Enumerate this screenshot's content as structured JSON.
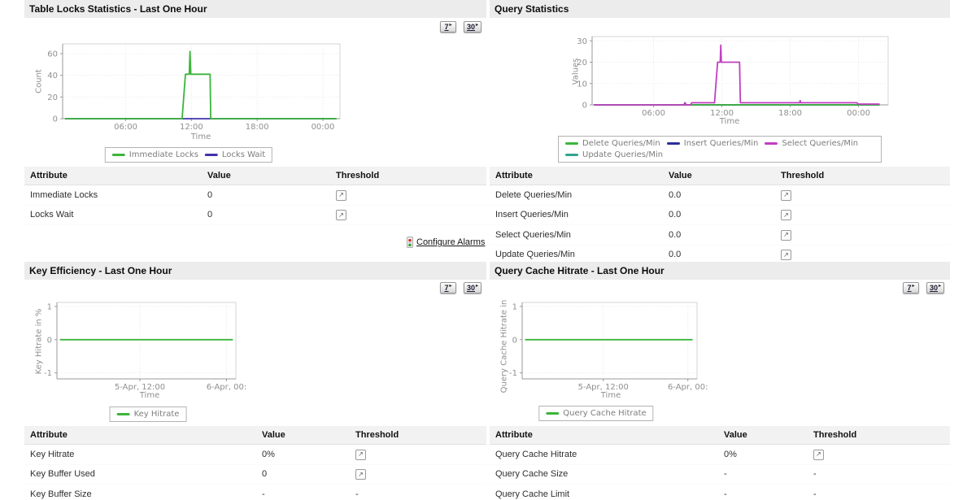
{
  "icons": {
    "threshold_glyph": "↗",
    "period_arrow_glyph": "▸"
  },
  "period_buttons": {
    "seven": "7",
    "thirty": "30"
  },
  "panels": {
    "table_locks": {
      "title": "Table Locks Statistics - Last One Hour",
      "chart_data": {
        "type": "line",
        "xlabel": "Time",
        "ylabel": "Count",
        "xlim": [
          0.24,
          25.56
        ],
        "ylim": [
          0,
          69
        ],
        "xticks": [
          {
            "v": 6,
            "label": "06:00"
          },
          {
            "v": 12,
            "label": "12:00"
          },
          {
            "v": 18,
            "label": "18:00"
          },
          {
            "v": 24,
            "label": "00:00"
          }
        ],
        "yticks": [
          {
            "v": 0,
            "label": "0"
          },
          {
            "v": 20,
            "label": "20"
          },
          {
            "v": 40,
            "label": "40"
          },
          {
            "v": 60,
            "label": "60"
          }
        ],
        "legend": [
          {
            "label": "Immediate Locks",
            "color": "#3cb53c"
          },
          {
            "label": "Locks Wait",
            "color": "#4133ab"
          }
        ],
        "series": [
          {
            "name": "Locks Wait",
            "color": "#4133ab",
            "z": 1,
            "points": [
              [
                0.5,
                0
              ],
              [
                25.2,
                0
              ]
            ]
          },
          {
            "name": "Immediate Locks",
            "color": "#3cb53c",
            "z": 2,
            "points": [
              [
                0.5,
                0
              ],
              [
                11.15,
                0
              ],
              [
                11.45,
                41
              ],
              [
                11.8,
                41
              ],
              [
                11.87,
                62
              ],
              [
                11.94,
                41
              ],
              [
                13.7,
                41
              ],
              [
                13.76,
                0
              ],
              [
                25.2,
                0
              ]
            ]
          }
        ]
      },
      "table": {
        "columns": [
          "Attribute",
          "Value",
          "Threshold"
        ],
        "rows": [
          [
            "Immediate Locks",
            "0",
            "edit-icon"
          ],
          [
            "Locks Wait",
            "0",
            "edit-icon"
          ]
        ]
      },
      "configure_alarms_label": "Configure Alarms"
    },
    "query_statistics": {
      "title": "Query Statistics",
      "chart_data": {
        "type": "line",
        "xlabel": "Time",
        "ylabel": "Values",
        "xlim": [
          0.6,
          26.6
        ],
        "ylim": [
          0,
          32
        ],
        "xticks": [
          {
            "v": 6,
            "label": "06:00"
          },
          {
            "v": 12,
            "label": "12:00"
          },
          {
            "v": 18,
            "label": "18:00"
          },
          {
            "v": 24,
            "label": "00:00"
          }
        ],
        "yticks": [
          {
            "v": 0,
            "label": "0"
          },
          {
            "v": 10,
            "label": "10"
          },
          {
            "v": 20,
            "label": "20"
          },
          {
            "v": 30,
            "label": "30"
          }
        ],
        "legend": [
          {
            "label": "Delete Queries/Min",
            "color": "#3cb53c"
          },
          {
            "label": "Insert Queries/Min",
            "color": "#2d2d9b"
          },
          {
            "label": "Select Queries/Min",
            "color": "#c13fc1"
          },
          {
            "label": "Update Queries/Min",
            "color": "#2fa48c"
          }
        ],
        "series": [
          {
            "name": "Update Queries/Min",
            "color": "#2fa48c",
            "z": 1,
            "points": [
              [
                0.8,
                0
              ],
              [
                25.8,
                0
              ]
            ]
          },
          {
            "name": "Insert Queries/Min",
            "color": "#2d2d9b",
            "z": 2,
            "points": [
              [
                0.8,
                0
              ],
              [
                8.68,
                0
              ],
              [
                8.74,
                0.9
              ],
              [
                8.8,
                0
              ],
              [
                25.8,
                0
              ]
            ]
          },
          {
            "name": "Delete Queries/Min",
            "color": "#3cb53c",
            "z": 3,
            "points": [
              [
                0.8,
                0
              ],
              [
                25.8,
                0
              ]
            ]
          },
          {
            "name": "Select Queries/Min",
            "color": "#c13fc1",
            "z": 4,
            "points": [
              [
                0.8,
                0
              ],
              [
                8.7,
                0
              ],
              [
                8.78,
                1
              ],
              [
                8.86,
                0
              ],
              [
                9.25,
                0
              ],
              [
                9.35,
                1
              ],
              [
                11.35,
                1
              ],
              [
                11.62,
                20
              ],
              [
                11.85,
                20
              ],
              [
                11.9,
                28
              ],
              [
                11.95,
                20
              ],
              [
                13.55,
                20
              ],
              [
                13.62,
                1
              ],
              [
                18.82,
                1
              ],
              [
                18.87,
                2
              ],
              [
                18.92,
                1
              ],
              [
                23.85,
                1
              ],
              [
                23.95,
                0.4
              ],
              [
                25.8,
                0.4
              ]
            ]
          }
        ]
      },
      "table": {
        "columns": [
          "Attribute",
          "Value",
          "Threshold"
        ],
        "rows": [
          [
            "Delete Queries/Min",
            "0.0",
            "edit-icon"
          ],
          [
            "Insert Queries/Min",
            "0.0",
            "edit-icon"
          ],
          [
            "Select Queries/Min",
            "0.0",
            "edit-icon"
          ],
          [
            "Update Queries/Min",
            "0.0",
            "edit-icon"
          ]
        ]
      }
    },
    "key_efficiency": {
      "title": "Key Efficiency - Last One Hour",
      "chart_data": {
        "type": "line",
        "xlabel": "Time",
        "ylabel": "Key Hitrate in %",
        "xlim": [
          0.5,
          25.3
        ],
        "ylim": [
          -1.18,
          1.12
        ],
        "xticks": [
          {
            "v": 12,
            "label": "5-Apr, 12:00"
          },
          {
            "v": 24,
            "label": "6-Apr, 00:"
          }
        ],
        "yticks": [
          {
            "v": -1,
            "label": "-1"
          },
          {
            "v": 0,
            "label": "0"
          },
          {
            "v": 1,
            "label": "1"
          }
        ],
        "legend": [
          {
            "label": "Key Hitrate",
            "color": "#3cb53c"
          }
        ],
        "series": [
          {
            "name": "Key Hitrate",
            "color": "#3cb53c",
            "z": 1,
            "points": [
              [
                1,
                0
              ],
              [
                24.8,
                0
              ]
            ]
          }
        ]
      },
      "table": {
        "columns": [
          "Attribute",
          "Value",
          "Threshold"
        ],
        "rows": [
          [
            "Key Hitrate",
            "0%",
            "edit-icon"
          ],
          [
            "Key Buffer Used",
            "0",
            "edit-icon"
          ],
          [
            "Key Buffer Size",
            "-",
            "-"
          ]
        ]
      }
    },
    "query_cache_hitrate": {
      "title": "Query Cache Hitrate - Last One Hour",
      "chart_data": {
        "type": "line",
        "xlabel": "Time",
        "ylabel": "Query Cache Hitrate in",
        "xlim": [
          0.5,
          25.3
        ],
        "ylim": [
          -1.18,
          1.12
        ],
        "xticks": [
          {
            "v": 12,
            "label": "5-Apr, 12:00"
          },
          {
            "v": 24,
            "label": "6-Apr, 00:"
          }
        ],
        "yticks": [
          {
            "v": -1,
            "label": "-1"
          },
          {
            "v": 0,
            "label": "0"
          },
          {
            "v": 1,
            "label": "1"
          }
        ],
        "legend": [
          {
            "label": "Query Cache Hitrate",
            "color": "#3cb53c"
          }
        ],
        "series": [
          {
            "name": "Query Cache Hitrate",
            "color": "#3cb53c",
            "z": 1,
            "points": [
              [
                1,
                0
              ],
              [
                24.6,
                0
              ]
            ]
          }
        ]
      },
      "table": {
        "columns": [
          "Attribute",
          "Value",
          "Threshold"
        ],
        "rows": [
          [
            "Query Cache Hitrate",
            "0%",
            "edit-icon"
          ],
          [
            "Query Cache Size",
            "-",
            "-"
          ],
          [
            "Query Cache Limit",
            "-",
            "-"
          ]
        ]
      }
    }
  }
}
